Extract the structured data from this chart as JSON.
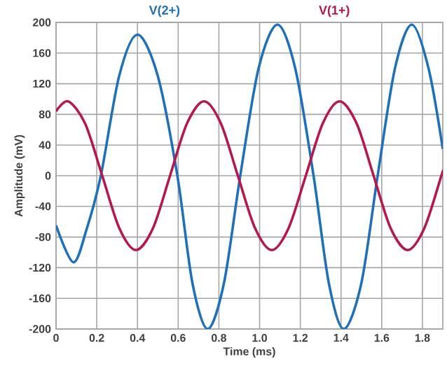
{
  "chart_data": {
    "type": "line",
    "xlabel": "Time (ms)",
    "ylabel": "Amplitude (mV)",
    "xlim": [
      0,
      1.9
    ],
    "ylim": [
      -200,
      200
    ],
    "xticks": [
      0,
      0.2,
      0.4,
      0.6,
      0.8,
      {
        "value": 1,
        "label": "1.0"
      },
      1.2,
      1.4,
      1.6,
      1.8
    ],
    "yticks": [
      -200,
      -160,
      -120,
      -80,
      -40,
      0,
      40,
      80,
      120,
      160,
      200
    ],
    "grid": true,
    "legend": "top",
    "marker": "none",
    "line_style": "solid",
    "series": [
      {
        "name": "V(2+)",
        "color": "#1f70b8",
        "x": [
          0,
          0.085,
          0.15,
          0.22,
          0.31,
          0.4,
          0.5,
          0.596,
          0.67,
          0.745,
          0.825,
          0.905,
          0.995,
          1.088,
          1.175,
          1.265,
          1.34,
          1.414,
          1.5,
          1.58,
          1.665,
          1.748,
          1.83,
          1.9
        ],
        "values": [
          -65,
          -113,
          -70,
          0,
          130,
          184,
          130,
          0,
          -140,
          -200,
          -140,
          0,
          140,
          197,
          140,
          0,
          -140,
          -200,
          -140,
          0,
          140,
          197,
          140,
          35
        ]
      },
      {
        "name": "V(1+)",
        "color": "#b3184f",
        "x": [
          0,
          0.06,
          0.143,
          0.227,
          0.31,
          0.393,
          0.477,
          0.56,
          0.643,
          0.727,
          0.81,
          0.893,
          0.977,
          1.06,
          1.143,
          1.227,
          1.31,
          1.393,
          1.477,
          1.56,
          1.643,
          1.727,
          1.81,
          1.893,
          1.9
        ],
        "values": [
          84,
          97,
          68,
          0,
          -68,
          -97,
          -68,
          0,
          68,
          97,
          68,
          0,
          -68,
          -97,
          -68,
          0,
          68,
          97,
          68,
          0,
          -68,
          -97,
          -68,
          0,
          5
        ]
      }
    ]
  }
}
